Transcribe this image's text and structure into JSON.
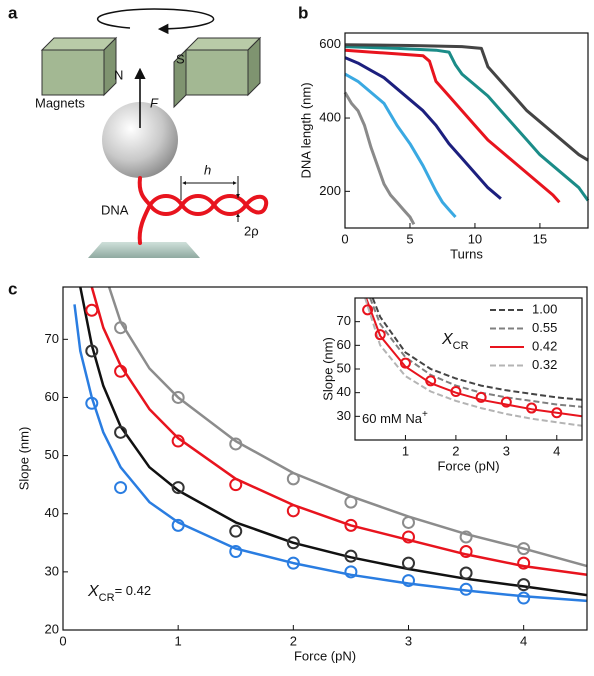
{
  "panel_labels": [
    "a",
    "b",
    "c"
  ],
  "diagram": {
    "north": "N",
    "south": "S",
    "magnets": "Magnets",
    "force": "F",
    "h_label": "h",
    "dna": "DNA",
    "rho_label": "2ρ"
  },
  "chart_data": [
    {
      "type": "line",
      "xlabel": "Turns",
      "ylabel": "DNA length (nm)",
      "xlim": [
        0,
        18.7
      ],
      "ylim": [
        100,
        632
      ],
      "xticks": [
        0,
        5,
        10,
        15
      ],
      "yticks": [
        200,
        400,
        600
      ],
      "series": [
        {
          "color": "#8a8a8a",
          "x": [
            0,
            0.5,
            1,
            1.5,
            2,
            2.5,
            3,
            3.5,
            4,
            4.5,
            5,
            5.3
          ],
          "values": [
            470,
            440,
            420,
            380,
            320,
            270,
            220,
            190,
            170,
            150,
            130,
            110
          ]
        },
        {
          "color": "#3aa9e2",
          "x": [
            0,
            1,
            2,
            3,
            4,
            5,
            6,
            7,
            7.5,
            8,
            8.5
          ],
          "values": [
            520,
            500,
            470,
            440,
            380,
            330,
            270,
            200,
            170,
            150,
            130
          ]
        },
        {
          "color": "#1c1f7e",
          "x": [
            0,
            1,
            2,
            3,
            4,
            5,
            6,
            7,
            8,
            9,
            10,
            11,
            12
          ],
          "values": [
            565,
            550,
            530,
            510,
            480,
            450,
            420,
            380,
            330,
            290,
            250,
            210,
            180
          ]
        },
        {
          "color": "#e8141e",
          "x": [
            0,
            2,
            4,
            6,
            6.5,
            7,
            8,
            9,
            10,
            11,
            12,
            13,
            14,
            15,
            16,
            16.5
          ],
          "values": [
            585,
            580,
            575,
            570,
            555,
            500,
            460,
            420,
            380,
            340,
            310,
            280,
            250,
            220,
            190,
            170
          ]
        },
        {
          "color": "#1b8c88",
          "x": [
            0,
            4,
            7,
            8,
            8.5,
            9,
            10,
            11,
            12,
            13,
            14,
            15,
            16,
            17,
            18,
            18.7
          ],
          "values": [
            595,
            590,
            585,
            580,
            545,
            520,
            490,
            460,
            420,
            380,
            340,
            300,
            270,
            240,
            210,
            175
          ]
        },
        {
          "color": "#444444",
          "x": [
            0,
            5,
            9,
            10.5,
            11,
            12,
            13,
            14,
            15,
            16,
            17,
            18,
            18.7
          ],
          "values": [
            600,
            598,
            595,
            590,
            540,
            500,
            460,
            420,
            390,
            360,
            330,
            300,
            285
          ]
        }
      ]
    },
    {
      "type": "scatter",
      "xlabel": "Force (pN)",
      "ylabel": "Slope (nm)",
      "xlim": [
        0,
        4.55
      ],
      "ylim": [
        20,
        79
      ],
      "xticks": [
        0,
        1,
        2,
        3,
        4
      ],
      "yticks": [
        20,
        30,
        40,
        50,
        60,
        70
      ],
      "annotation": {
        "symbol": "X",
        "subscript": "CR",
        "text": "= 0.42"
      },
      "series": [
        {
          "color": "#8c8c8c",
          "mode": "line",
          "x": [
            0.4,
            0.5,
            0.75,
            1,
            1.5,
            2,
            2.5,
            3,
            3.5,
            4,
            4.55
          ],
          "values": [
            79,
            73,
            65,
            60,
            52.5,
            47,
            43,
            39.5,
            36.5,
            34,
            31
          ]
        },
        {
          "color": "#e8141e",
          "mode": "line",
          "x": [
            0.25,
            0.35,
            0.5,
            0.75,
            1,
            1.5,
            2,
            2.5,
            3,
            3.5,
            4,
            4.55
          ],
          "values": [
            79,
            72,
            65.5,
            58,
            53,
            46,
            41.5,
            38,
            35.5,
            33,
            31,
            29.5
          ]
        },
        {
          "color": "#111111",
          "mode": "line",
          "x": [
            0.15,
            0.25,
            0.35,
            0.5,
            0.75,
            1,
            1.5,
            2,
            2.5,
            3,
            3.5,
            4,
            4.55
          ],
          "values": [
            79,
            69,
            62,
            55,
            48,
            44,
            38.5,
            35,
            32.5,
            30.5,
            28.8,
            27.5,
            26
          ]
        },
        {
          "color": "#2a7de1",
          "mode": "line",
          "x": [
            0.1,
            0.15,
            0.25,
            0.35,
            0.5,
            0.75,
            1,
            1.5,
            2,
            2.5,
            3,
            3.5,
            4,
            4.55
          ],
          "values": [
            76,
            68,
            60,
            54,
            48,
            42,
            38.5,
            34,
            31.5,
            29.5,
            28,
            26.8,
            25.8,
            25
          ]
        },
        {
          "color": "#8c8c8c",
          "mode": "markers",
          "x": [
            0.5,
            1,
            1.5,
            2,
            2.5,
            3,
            3.5,
            4
          ],
          "values": [
            72,
            60,
            52,
            46,
            42,
            38.5,
            36,
            34
          ]
        },
        {
          "color": "#e8141e",
          "mode": "markers",
          "x": [
            0.25,
            0.5,
            1,
            1.5,
            2,
            2.5,
            3,
            3.5,
            4
          ],
          "values": [
            75,
            64.5,
            52.5,
            45,
            40.5,
            38,
            36,
            33.5,
            31.5
          ]
        },
        {
          "color": "#333333",
          "mode": "markers",
          "x": [
            0.25,
            0.5,
            1,
            1.5,
            2,
            2.5,
            3,
            3.5,
            4
          ],
          "values": [
            68,
            54,
            44.5,
            37,
            35,
            32.7,
            31.5,
            29.8,
            27.8
          ]
        },
        {
          "color": "#2a7de1",
          "mode": "markers",
          "x": [
            0.25,
            0.5,
            1,
            1.5,
            2,
            2.5,
            3,
            3.5,
            4
          ],
          "values": [
            59,
            44.5,
            38,
            33.5,
            31.5,
            30,
            28.5,
            27,
            25.5
          ]
        }
      ]
    },
    {
      "type": "scatter",
      "xlabel": "Force (pN)",
      "ylabel": "Slope (nm)",
      "xlim": [
        0,
        4.5
      ],
      "ylim": [
        20,
        80
      ],
      "xticks": [
        1,
        2,
        3,
        4
      ],
      "yticks": [
        30,
        40,
        50,
        60,
        70
      ],
      "legend": "upper right",
      "legend_title": {
        "symbol": "X",
        "subscript": "CR"
      },
      "annotation": {
        "text": "60 mM Na",
        "superscript": "+"
      },
      "series": [
        {
          "name": "1.00",
          "color": "#444444",
          "mode": "line",
          "dash": true,
          "x": [
            0.35,
            0.5,
            1,
            1.5,
            2,
            2.5,
            3,
            3.5,
            4,
            4.5
          ],
          "values": [
            80,
            72,
            57,
            50,
            46,
            43,
            41,
            39.5,
            38,
            37
          ]
        },
        {
          "name": "0.55",
          "color": "#808080",
          "mode": "line",
          "dash": true,
          "x": [
            0.3,
            0.5,
            1,
            1.5,
            2,
            2.5,
            3,
            3.5,
            4,
            4.5
          ],
          "values": [
            80,
            69,
            55,
            47.5,
            43,
            40,
            38,
            36.5,
            35,
            34
          ]
        },
        {
          "name": "0.42",
          "color": "#e8141e",
          "mode": "line",
          "dash": false,
          "x": [
            0.22,
            0.5,
            1,
            1.5,
            2,
            2.5,
            3,
            3.5,
            4,
            4.5
          ],
          "values": [
            80,
            64,
            51,
            44,
            40,
            37,
            35,
            33,
            31.5,
            30
          ]
        },
        {
          "name": "0.32",
          "color": "#b4b4b4",
          "mode": "line",
          "dash": true,
          "x": [
            0.2,
            0.5,
            1,
            1.5,
            2,
            2.5,
            3,
            3.5,
            4,
            4.5
          ],
          "values": [
            80,
            60,
            47,
            40.5,
            36.5,
            33.5,
            31,
            29,
            27.5,
            26
          ]
        },
        {
          "color": "#e8141e",
          "mode": "markers",
          "x": [
            0.25,
            0.5,
            1,
            1.5,
            2,
            2.5,
            3,
            3.5,
            4
          ],
          "values": [
            75,
            64.5,
            52.5,
            45,
            40.5,
            38,
            36,
            33.5,
            31.5
          ]
        }
      ]
    }
  ]
}
